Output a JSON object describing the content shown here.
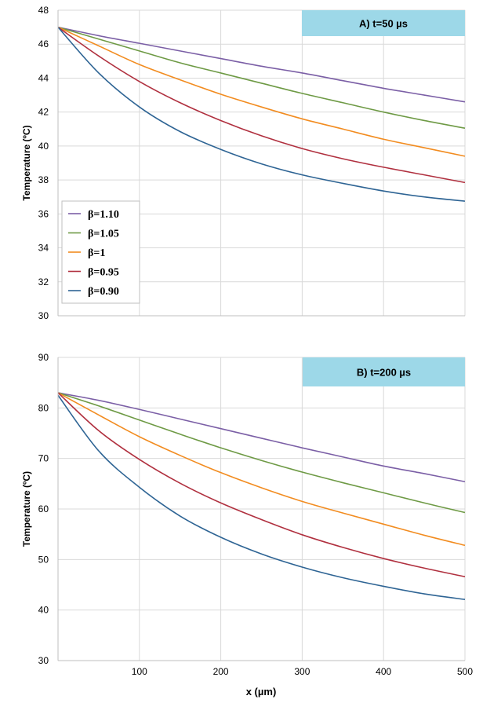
{
  "chart_data": [
    {
      "type": "line",
      "title": "A) t=50 µs",
      "xlabel": "x (µm)",
      "ylabel": "Temperature (ºC)",
      "xlim": [
        0,
        500
      ],
      "ylim": [
        30,
        48
      ],
      "xticks": [
        100,
        200,
        300,
        400,
        500
      ],
      "yticks": [
        30,
        32,
        34,
        36,
        38,
        40,
        42,
        44,
        46,
        48
      ],
      "xtick_labels": [],
      "grid": true,
      "legend": {
        "position": "left"
      },
      "x": [
        0,
        50,
        100,
        150,
        200,
        250,
        300,
        350,
        400,
        450,
        500
      ],
      "series": [
        {
          "name": "β=1.10",
          "color": "#7B5FA6",
          "values": [
            47.0,
            46.5,
            46.05,
            45.6,
            45.15,
            44.7,
            44.3,
            43.85,
            43.4,
            43.0,
            42.6
          ]
        },
        {
          "name": "β=1.05",
          "color": "#6E9A45",
          "values": [
            47.0,
            46.3,
            45.6,
            44.9,
            44.3,
            43.7,
            43.1,
            42.55,
            42.0,
            41.5,
            41.05
          ]
        },
        {
          "name": "β=1",
          "color": "#F28C20",
          "values": [
            47.0,
            45.9,
            44.8,
            43.9,
            43.05,
            42.3,
            41.6,
            41.0,
            40.4,
            39.9,
            39.4
          ]
        },
        {
          "name": "β=0.95",
          "color": "#B0303F",
          "values": [
            47.0,
            45.3,
            43.8,
            42.55,
            41.5,
            40.6,
            39.85,
            39.25,
            38.75,
            38.3,
            37.85
          ]
        },
        {
          "name": "β=0.90",
          "color": "#2E6494",
          "values": [
            47.0,
            44.3,
            42.3,
            40.85,
            39.8,
            38.95,
            38.3,
            37.8,
            37.35,
            37.0,
            36.75
          ]
        }
      ]
    },
    {
      "type": "line",
      "title": "B) t=200 µs",
      "xlabel": "x (µm)",
      "ylabel": "Temperature (ºC)",
      "xlim": [
        0,
        500
      ],
      "ylim": [
        30,
        90
      ],
      "xticks": [
        100,
        200,
        300,
        400,
        500
      ],
      "yticks": [
        30,
        40,
        50,
        60,
        70,
        80,
        90
      ],
      "xtick_labels": [
        "100",
        "200",
        "300",
        "400",
        "500"
      ],
      "grid": true,
      "x": [
        0,
        50,
        100,
        150,
        200,
        250,
        300,
        350,
        400,
        450,
        500
      ],
      "series": [
        {
          "name": "β=1.10",
          "color": "#7B5FA6",
          "values": [
            83.0,
            81.5,
            79.7,
            77.8,
            75.9,
            74.0,
            72.1,
            70.3,
            68.5,
            67.0,
            65.4
          ]
        },
        {
          "name": "β=1.05",
          "color": "#6E9A45",
          "values": [
            83.0,
            80.4,
            77.6,
            74.8,
            72.1,
            69.6,
            67.3,
            65.2,
            63.2,
            61.2,
            59.3
          ]
        },
        {
          "name": "β=1",
          "color": "#F28C20",
          "values": [
            83.0,
            78.6,
            74.3,
            70.6,
            67.2,
            64.2,
            61.5,
            59.2,
            57.0,
            54.8,
            52.8
          ]
        },
        {
          "name": "β=0.95",
          "color": "#B0303F",
          "values": [
            83.0,
            75.5,
            69.8,
            65.1,
            61.2,
            57.9,
            54.9,
            52.4,
            50.2,
            48.3,
            46.6
          ]
        },
        {
          "name": "β=0.90",
          "color": "#2E6494",
          "values": [
            82.5,
            71.5,
            64.3,
            58.6,
            54.4,
            51.1,
            48.5,
            46.4,
            44.7,
            43.2,
            42.1
          ]
        }
      ]
    }
  ]
}
